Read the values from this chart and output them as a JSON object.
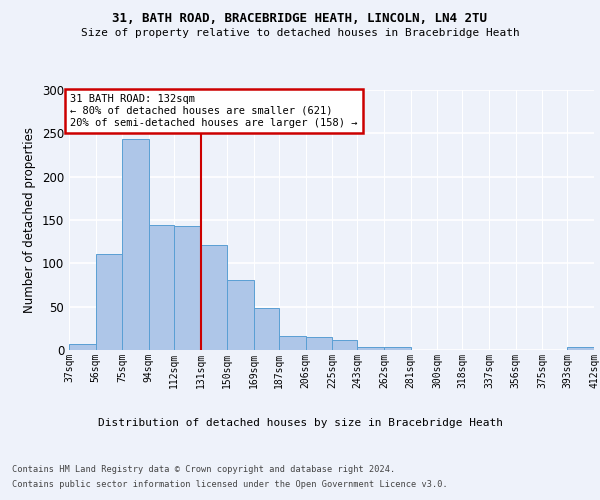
{
  "title1": "31, BATH ROAD, BRACEBRIDGE HEATH, LINCOLN, LN4 2TU",
  "title2": "Size of property relative to detached houses in Bracebridge Heath",
  "xlabel": "Distribution of detached houses by size in Bracebridge Heath",
  "ylabel": "Number of detached properties",
  "footer1": "Contains HM Land Registry data © Crown copyright and database right 2024.",
  "footer2": "Contains public sector information licensed under the Open Government Licence v3.0.",
  "annotation_line1": "31 BATH ROAD: 132sqm",
  "annotation_line2": "← 80% of detached houses are smaller (621)",
  "annotation_line3": "20% of semi-detached houses are larger (158) →",
  "property_size_idx": 5,
  "bar_values": [
    7,
    111,
    243,
    144,
    143,
    121,
    81,
    49,
    16,
    15,
    12,
    4,
    3,
    0,
    0,
    0,
    0,
    0,
    0,
    3
  ],
  "bin_edges": [
    37,
    56,
    75,
    94,
    112,
    131,
    150,
    169,
    187,
    206,
    225,
    243,
    262,
    281,
    300,
    318,
    337,
    356,
    375,
    393,
    412
  ],
  "bin_labels": [
    "37sqm",
    "56sqm",
    "75sqm",
    "94sqm",
    "112sqm",
    "131sqm",
    "150sqm",
    "169sqm",
    "187sqm",
    "206sqm",
    "225sqm",
    "243sqm",
    "262sqm",
    "281sqm",
    "300sqm",
    "318sqm",
    "337sqm",
    "356sqm",
    "375sqm",
    "393sqm",
    "412sqm"
  ],
  "bar_color": "#aec6e8",
  "bar_edge_color": "#5a9fd4",
  "marker_color": "#cc0000",
  "ylim": [
    0,
    300
  ],
  "yticks": [
    0,
    50,
    100,
    150,
    200,
    250,
    300
  ],
  "background_color": "#eef2fa",
  "grid_color": "#ffffff",
  "annotation_box_color": "#ffffff",
  "annotation_box_edge": "#cc0000"
}
